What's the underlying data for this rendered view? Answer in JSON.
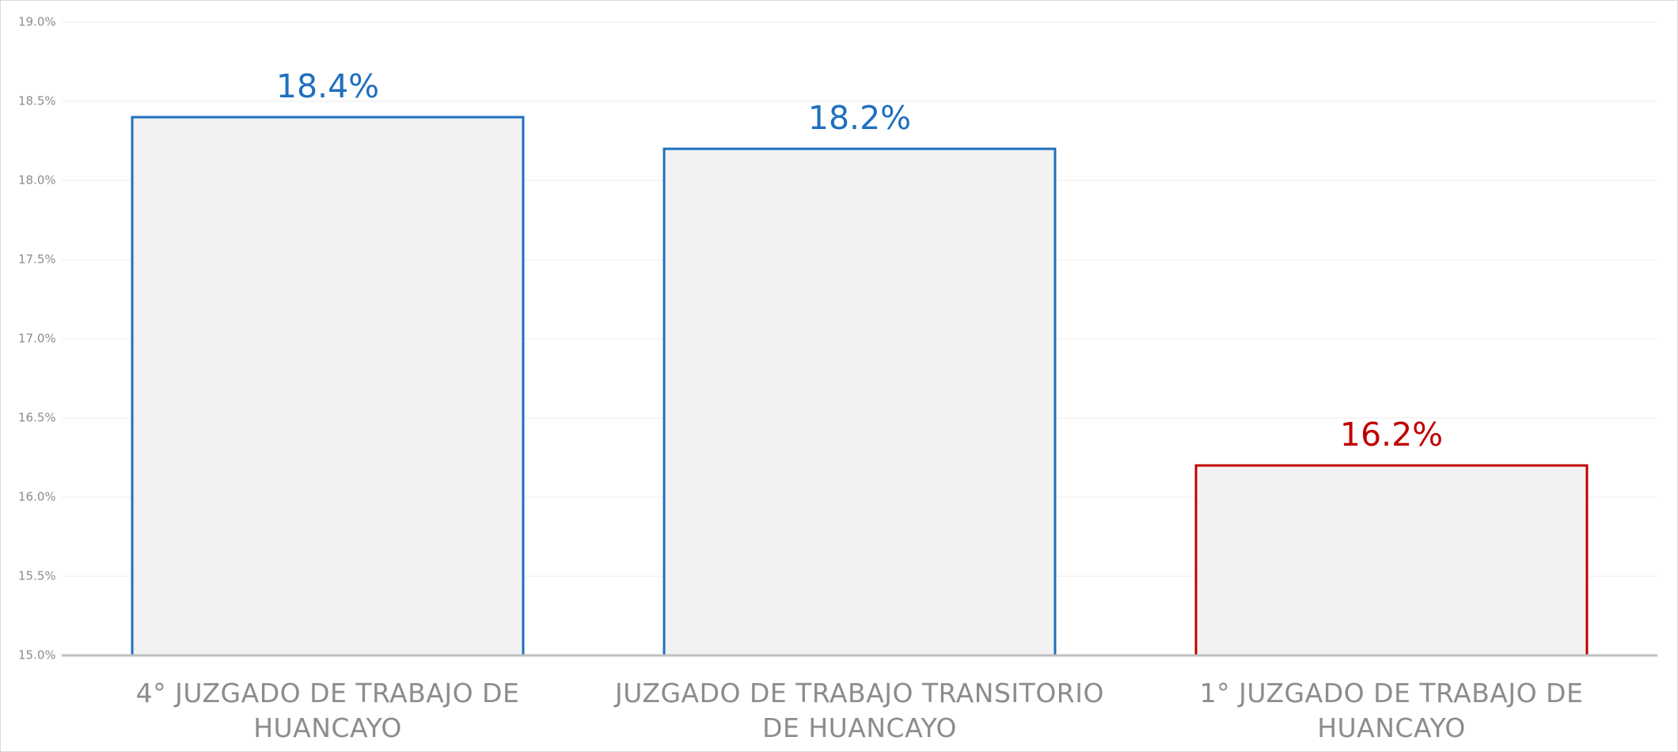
{
  "chart_data": {
    "type": "bar",
    "categories": [
      "4° JUZGADO DE TRABAJO DE HUANCAYO",
      "JUZGADO DE TRABAJO TRANSITORIO DE HUANCAYO",
      "1° JUZGADO DE TRABAJO DE HUANCAYO"
    ],
    "values": [
      18.4,
      18.2,
      16.2
    ],
    "value_labels": [
      "18.4%",
      "18.2%",
      "16.2%"
    ],
    "colors": [
      "#1f6fbf",
      "#1f6fbf",
      "#c00000"
    ],
    "fill": "#f2f2f2",
    "ylim": [
      15,
      19
    ],
    "yticks": [
      {
        "value": 15,
        "label": "15.0%"
      },
      {
        "value": 15.5,
        "label": "15.5%"
      },
      {
        "value": 16,
        "label": "16.0%"
      },
      {
        "value": 16.5,
        "label": "16.5%"
      },
      {
        "value": 17,
        "label": "17.0%"
      },
      {
        "value": 17.5,
        "label": "17.5%"
      },
      {
        "value": 18,
        "label": "18.0%"
      },
      {
        "value": 18.5,
        "label": "18.5%"
      },
      {
        "value": 19,
        "label": "19.0%"
      }
    ],
    "grid": true
  }
}
